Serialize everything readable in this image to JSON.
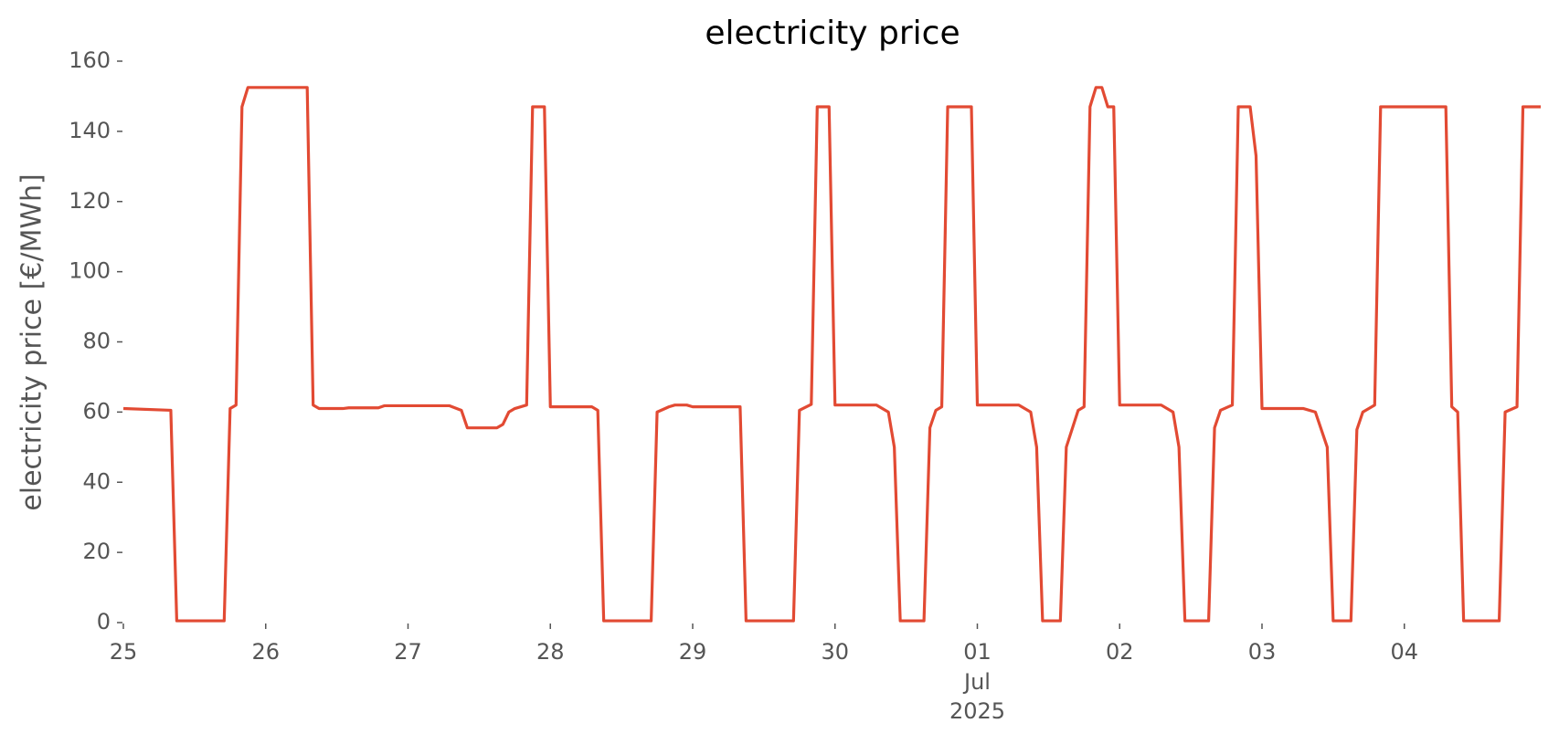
{
  "chart_data": {
    "type": "line",
    "title": "electricity price",
    "ylabel": "electricity price [€/MWh]",
    "x": [
      0,
      8,
      9,
      17,
      18,
      19,
      20,
      21,
      31,
      32,
      33,
      37,
      38,
      43,
      44,
      55,
      57,
      58,
      63,
      64,
      65,
      66,
      68,
      69,
      71,
      72,
      79,
      80,
      81,
      89,
      90,
      92,
      93,
      95,
      96,
      104,
      105,
      113,
      114,
      116,
      117,
      119,
      120,
      127,
      129,
      130,
      131,
      135,
      136,
      137,
      138,
      139,
      143,
      144,
      151,
      153,
      154,
      155,
      158,
      159,
      161,
      162,
      163,
      164,
      165,
      166,
      167,
      168,
      175,
      177,
      178,
      179,
      183,
      184,
      185,
      187,
      188,
      190,
      191,
      192,
      199,
      201,
      203,
      204,
      207,
      208,
      209,
      211,
      212,
      223,
      224,
      225,
      226,
      232,
      233,
      235,
      236,
      239
    ],
    "values": [
      61,
      60.5,
      0.5,
      0.5,
      61,
      62,
      147,
      152.5,
      152.5,
      62,
      61,
      61,
      61.2,
      61.2,
      61.8,
      61.8,
      60.5,
      55.5,
      55.5,
      56.5,
      60,
      61,
      62,
      147,
      147,
      61.5,
      61.5,
      60.5,
      0.5,
      0.5,
      60,
      61.5,
      62,
      62,
      61.5,
      61.5,
      0.5,
      0.5,
      60.5,
      62.2,
      147,
      147,
      62,
      62,
      60,
      50,
      0.5,
      0.5,
      55.5,
      60.5,
      61.5,
      147,
      147,
      62,
      62,
      60,
      50,
      0.5,
      0.5,
      50,
      60.5,
      61.5,
      147,
      152.5,
      152.5,
      147,
      147,
      62,
      62,
      60,
      50,
      0.5,
      0.5,
      55.5,
      60.5,
      62,
      147,
      147,
      133,
      61,
      61,
      60,
      50,
      0.5,
      0.5,
      55,
      60,
      62,
      147,
      147,
      61.5,
      60,
      0.5,
      0.5,
      60,
      61.5,
      147,
      147
    ],
    "color": "#e24a33",
    "xlim": [
      0,
      239
    ],
    "xticks": [
      {
        "value": 0,
        "label": "25"
      },
      {
        "value": 24,
        "label": "26"
      },
      {
        "value": 48,
        "label": "27"
      },
      {
        "value": 72,
        "label": "28"
      },
      {
        "value": 96,
        "label": "29"
      },
      {
        "value": 120,
        "label": "30"
      },
      {
        "value": 144,
        "label": "01"
      },
      {
        "value": 168,
        "label": "02"
      },
      {
        "value": 192,
        "label": "03"
      },
      {
        "value": 216,
        "label": "04"
      }
    ],
    "xtick_sublabels": [
      "Jul",
      "2025"
    ],
    "ylim": [
      0,
      160
    ],
    "yticks": [
      0,
      20,
      40,
      60,
      80,
      100,
      120,
      140,
      160
    ],
    "grid": false
  }
}
